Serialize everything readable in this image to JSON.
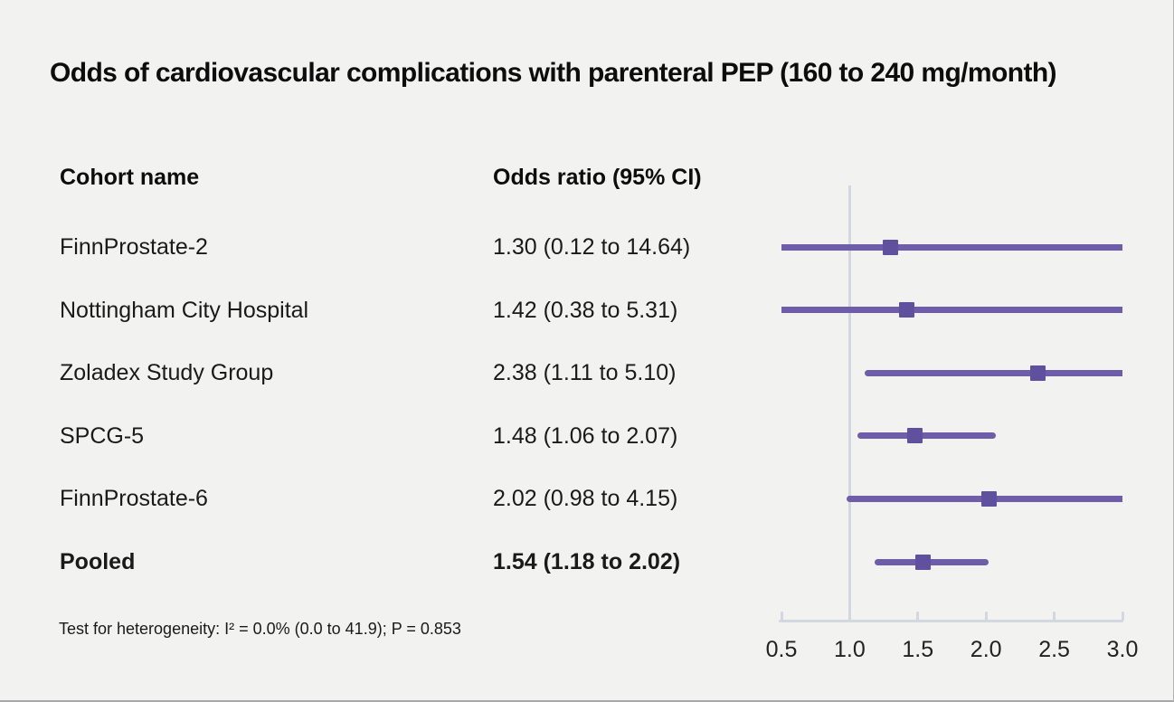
{
  "title": "Odds of cardiovascular complications with parenteral PEP (160 to 240 mg/month)",
  "columns": {
    "cohort": "Cohort name",
    "odds_ratio": "Odds ratio (95% CI)"
  },
  "footnote": "Test for heterogeneity: I² = 0.0% (0.0 to 41.9); P = 0.853",
  "colors": {
    "background": "#f2f2f1",
    "ci_line": "#6e5da9",
    "marker": "#5f519d",
    "axis": "#d2d7e0",
    "text": "#1a1a1a"
  },
  "chart_data": {
    "type": "forest",
    "title": "Odds of cardiovascular complications with parenteral PEP (160 to 240 mg/month)",
    "xlim": [
      0.5,
      3.0
    ],
    "x_ticks": [
      0.5,
      1.0,
      1.5,
      2.0,
      2.5,
      3.0
    ],
    "x_tick_labels": [
      "0.5",
      "1.0",
      "1.5",
      "2.0",
      "2.5",
      "3.0"
    ],
    "reference_line": 1.0,
    "grid": false,
    "rows": [
      {
        "label": "FinnProstate-2",
        "or_text": "1.30 (0.12 to 14.64)",
        "or": 1.3,
        "ci_low": 0.12,
        "ci_high": 14.64,
        "bold": false
      },
      {
        "label": "Nottingham City Hospital",
        "or_text": "1.42 (0.38 to 5.31)",
        "or": 1.42,
        "ci_low": 0.38,
        "ci_high": 5.31,
        "bold": false
      },
      {
        "label": "Zoladex Study Group",
        "or_text": "2.38 (1.11 to 5.10)",
        "or": 2.38,
        "ci_low": 1.11,
        "ci_high": 5.1,
        "bold": false
      },
      {
        "label": "SPCG-5",
        "or_text": "1.48 (1.06 to 2.07)",
        "or": 1.48,
        "ci_low": 1.06,
        "ci_high": 2.07,
        "bold": false
      },
      {
        "label": "FinnProstate-6",
        "or_text": "2.02 (0.98 to 4.15)",
        "or": 2.02,
        "ci_low": 0.98,
        "ci_high": 4.15,
        "bold": false
      },
      {
        "label": "Pooled",
        "or_text": "1.54 (1.18 to 2.02)",
        "or": 1.54,
        "ci_low": 1.18,
        "ci_high": 2.02,
        "bold": true
      }
    ]
  }
}
